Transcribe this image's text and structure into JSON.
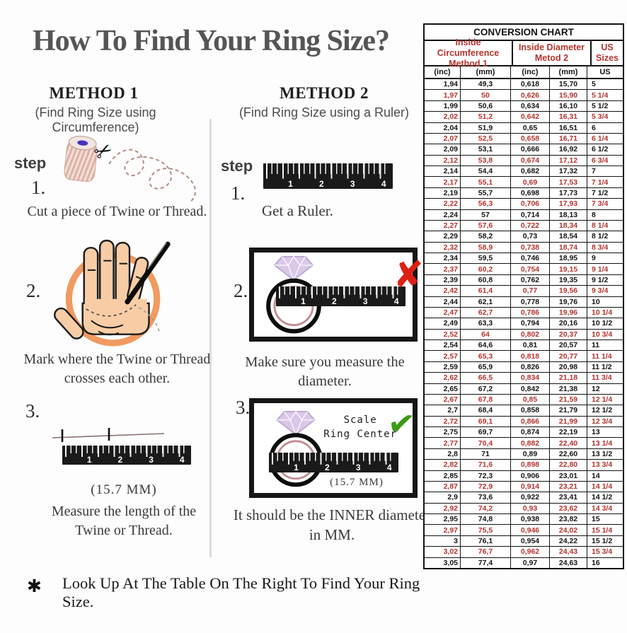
{
  "title": "How To Find Your Ring Size?",
  "footnote": {
    "bullet": "✱",
    "text": "Look Up At The Table On The Right To Find Your Ring Size."
  },
  "shared": {
    "ruler_numbers": [
      "1",
      "2",
      "3",
      "4"
    ]
  },
  "method1": {
    "heading": "METHOD 1",
    "subheading": "(Find Ring Size using Circumference)",
    "step_label": "step",
    "step1": {
      "num": "1.",
      "caption": "Cut a piece of  Twine or Thread."
    },
    "step2": {
      "num": "2.",
      "caption_line1": "Mark where the Twine or Thread",
      "caption_line2": "crosses each other."
    },
    "step3": {
      "num": "3.",
      "measure": "(15.7 MM)",
      "caption_line1": "Measure the length of the",
      "caption_line2": "Twine or Thread."
    }
  },
  "method2": {
    "heading": "METHOD 2",
    "subheading": "(Find Ring Size using a Ruler)",
    "step_label": "step",
    "step1": {
      "num": "1.",
      "caption": "Get a Ruler."
    },
    "step2": {
      "num": "2.",
      "caption": "Make sure you measure the diameter."
    },
    "step3": {
      "num": "3.",
      "scale_note_line1": "Scale",
      "scale_note_line2": "Ring Center",
      "measure": "(15.7 MM)",
      "caption_line1": "It should be the INNER diameter",
      "caption_line2": "in MM."
    }
  },
  "chart_data": {
    "type": "table",
    "title": "CONVERSION CHART",
    "column_groups": [
      {
        "line1": "Inside Circumference",
        "line2": "Method 1"
      },
      {
        "line1": "Inside Diameter",
        "line2": "Metod 2"
      },
      {
        "label": "US Sizes"
      }
    ],
    "sub_headers": [
      "(inc)",
      "(mm)",
      "(inc)",
      "(mm)",
      "US"
    ],
    "colors": {
      "red_text": "#b5332e",
      "black_text": "#141414"
    },
    "red_rows_note": "every second row (quarter US sizes) rendered in red",
    "rows": [
      [
        "1,94",
        "49,3",
        "0,618",
        "15,70",
        "5"
      ],
      [
        "1,97",
        "50",
        "0,626",
        "15,90",
        "5 1/4"
      ],
      [
        "1,99",
        "50,6",
        "0,634",
        "16,10",
        "5 1/2"
      ],
      [
        "2,02",
        "51,2",
        "0,642",
        "16,31",
        "5 3/4"
      ],
      [
        "2,04",
        "51,9",
        "0,65",
        "16,51",
        "6"
      ],
      [
        "2,07",
        "52,5",
        "0,658",
        "16,71",
        "6 1/4"
      ],
      [
        "2,09",
        "53,1",
        "0,666",
        "16,92",
        "6 1/2"
      ],
      [
        "2,12",
        "53,8",
        "0,674",
        "17,12",
        "6 3/4"
      ],
      [
        "2,14",
        "54,4",
        "0,682",
        "17,32",
        "7"
      ],
      [
        "2,17",
        "55,1",
        "0,69",
        "17,53",
        "7 1/4"
      ],
      [
        "2,19",
        "55,7",
        "0,698",
        "17,73",
        "7 1/2"
      ],
      [
        "2,22",
        "56,3",
        "0,706",
        "17,93",
        "7 3/4"
      ],
      [
        "2,24",
        "57",
        "0,714",
        "18,13",
        "8"
      ],
      [
        "2,27",
        "57,6",
        "0,722",
        "18,34",
        "8 1/4"
      ],
      [
        "2,29",
        "58,2",
        "0,73",
        "18,54",
        "8 1/2"
      ],
      [
        "2,32",
        "58,9",
        "0,738",
        "18,74",
        "8 3/4"
      ],
      [
        "2,34",
        "59,5",
        "0,746",
        "18,95",
        "9"
      ],
      [
        "2,37",
        "60,2",
        "0,754",
        "19,15",
        "9 1/4"
      ],
      [
        "2,39",
        "60,8",
        "0,762",
        "19,35",
        "9 1/2"
      ],
      [
        "2,42",
        "61,4",
        "0,77",
        "19,56",
        "9 3/4"
      ],
      [
        "2,44",
        "62,1",
        "0,778",
        "19,76",
        "10"
      ],
      [
        "2,47",
        "62,7",
        "0,786",
        "19,96",
        "10 1/4"
      ],
      [
        "2,49",
        "63,3",
        "0,794",
        "20,16",
        "10 1/2"
      ],
      [
        "2,52",
        "64",
        "0,802",
        "20,37",
        "10 3/4"
      ],
      [
        "2,54",
        "64,6",
        "0,81",
        "20,57",
        "11"
      ],
      [
        "2,57",
        "65,3",
        "0,818",
        "20,77",
        "11 1/4"
      ],
      [
        "2,59",
        "65,9",
        "0,826",
        "20,98",
        "11 1/2"
      ],
      [
        "2,62",
        "66,5",
        "0,834",
        "21,18",
        "11 3/4"
      ],
      [
        "2,65",
        "67,2",
        "0,842",
        "21,38",
        "12"
      ],
      [
        "2,67",
        "67,8",
        "0,85",
        "21,59",
        "12 1/4"
      ],
      [
        "2,7",
        "68,4",
        "0,858",
        "21,79",
        "12 1/2"
      ],
      [
        "2,72",
        "69,1",
        "0,866",
        "21,99",
        "12 3/4"
      ],
      [
        "2,75",
        "69,7",
        "0,874",
        "22,19",
        "13"
      ],
      [
        "2,77",
        "70,4",
        "0,882",
        "22,40",
        "13 1/4"
      ],
      [
        "2,8",
        "71",
        "0,89",
        "22,60",
        "13 1/2"
      ],
      [
        "2,82",
        "71,6",
        "0,898",
        "22,80",
        "13 3/4"
      ],
      [
        "2,85",
        "72,3",
        "0,906",
        "23,01",
        "14"
      ],
      [
        "2,87",
        "72,9",
        "0,914",
        "23,21",
        "14 1/4"
      ],
      [
        "2,9",
        "73,6",
        "0,922",
        "23,41",
        "14 1/2"
      ],
      [
        "2,92",
        "74,2",
        "0,93",
        "23,62",
        "14 3/4"
      ],
      [
        "2,95",
        "74,8",
        "0,938",
        "23,82",
        "15"
      ],
      [
        "2,97",
        "75,5",
        "0,946",
        "24,02",
        "15 1/4"
      ],
      [
        "3",
        "76,1",
        "0,954",
        "24,22",
        "15 1/2"
      ],
      [
        "3,02",
        "76,7",
        "0,962",
        "24,43",
        "15 3/4"
      ],
      [
        "3,05",
        "77,4",
        "0,97",
        "24,63",
        "16"
      ]
    ]
  }
}
